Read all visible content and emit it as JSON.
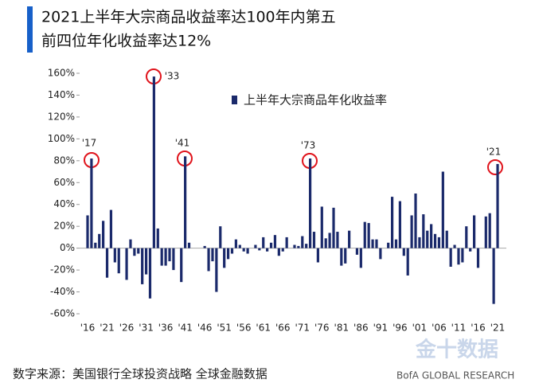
{
  "chart_data": {
    "type": "bar",
    "title": "2021上半年大宗商品收益率达100年内第五",
    "subtitle": "前四位年化收益率达12%",
    "categories": [
      "'16",
      null,
      null,
      null,
      null,
      "'21",
      null,
      null,
      null,
      null,
      "'26",
      null,
      null,
      null,
      null,
      "'31",
      null,
      null,
      null,
      null,
      "'36",
      null,
      null,
      null,
      null,
      "'41",
      null,
      null,
      null,
      null,
      "'46",
      null,
      null,
      null,
      null,
      "'51",
      null,
      null,
      null,
      null,
      "'56",
      null,
      null,
      null,
      null,
      "'61",
      null,
      null,
      null,
      null,
      "'66",
      null,
      null,
      null,
      null,
      "'71",
      null,
      null,
      null,
      null,
      "'76",
      null,
      null,
      null,
      null,
      "'81",
      null,
      null,
      null,
      null,
      "'86",
      null,
      null,
      null,
      null,
      "'91",
      null,
      null,
      null,
      null,
      "'96",
      null,
      null,
      null,
      null,
      "'01",
      null,
      null,
      null,
      null,
      "'06",
      null,
      null,
      null,
      null,
      "'11",
      null,
      null,
      null,
      null,
      "'16",
      null,
      null,
      null,
      null,
      "'21"
    ],
    "series": [
      {
        "name": "上半年大宗商品年化收益率",
        "color": "#1b2a6b",
        "values": [
          30,
          82,
          5,
          13,
          25,
          -27,
          35,
          -13,
          -23,
          0,
          -29,
          8,
          -7,
          -5,
          -33,
          -24,
          -46,
          157,
          18,
          -16,
          -16,
          -12,
          -20,
          0,
          -31,
          84,
          5,
          0,
          0,
          0,
          2,
          -21,
          -12,
          -40,
          20,
          -18,
          -10,
          -5,
          8,
          3,
          -3,
          -5,
          0,
          3,
          -2,
          10,
          -3,
          5,
          12,
          -7,
          -3,
          10,
          0,
          3,
          2,
          11,
          4,
          82,
          15,
          -13,
          38,
          9,
          14,
          37,
          15,
          -16,
          -14,
          16,
          0,
          -6,
          -18,
          24,
          23,
          8,
          8,
          -10,
          0,
          5,
          47,
          8,
          43,
          -7,
          -25,
          30,
          50,
          10,
          31,
          16,
          22,
          13,
          10,
          70,
          16,
          -17,
          3,
          -15,
          -13,
          20,
          -3,
          30,
          -18,
          0,
          29,
          32,
          -51,
          77
        ]
      }
    ],
    "ylim": [
      -60,
      160
    ],
    "yticks": [
      {
        "value": -60,
        "label": "-60%"
      },
      {
        "value": -40,
        "label": "-40%"
      },
      {
        "value": -20,
        "label": "-20%"
      },
      {
        "value": 0,
        "label": "0%"
      },
      {
        "value": 20,
        "label": "20%"
      },
      {
        "value": 40,
        "label": "40%"
      },
      {
        "value": 60,
        "label": "60%"
      },
      {
        "value": 80,
        "label": "80%"
      },
      {
        "value": 100,
        "label": "100%"
      },
      {
        "value": 120,
        "label": "120%"
      },
      {
        "value": 140,
        "label": "140%"
      },
      {
        "value": 160,
        "label": "160%"
      }
    ],
    "annotations": [
      "'17",
      "'33",
      "'41",
      "'73",
      "'21"
    ],
    "legend": "top-right",
    "source": "数字来源：美国银行全球投资战略 全球金融数据",
    "credit": "BofA GLOBAL RESEARCH",
    "watermark": "金十数据"
  }
}
